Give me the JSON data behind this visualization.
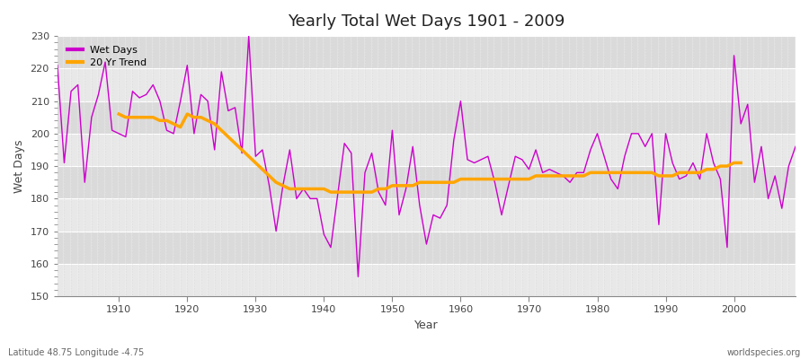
{
  "title": "Yearly Total Wet Days 1901 - 2009",
  "xlabel": "Year",
  "ylabel": "Wet Days",
  "ylim": [
    150,
    230
  ],
  "xlim": [
    1901,
    2009
  ],
  "yticks": [
    150,
    160,
    170,
    180,
    190,
    200,
    210,
    220,
    230
  ],
  "xticks": [
    1910,
    1920,
    1930,
    1940,
    1950,
    1960,
    1970,
    1980,
    1990,
    2000
  ],
  "wet_days_color": "#CC00CC",
  "trend_color": "#FFA500",
  "background_color": "#DCDCDC",
  "plot_bg_color": "#DCDCDC",
  "band_color_light": "#E8E8E8",
  "band_color_dark": "#D4D4D4",
  "subtitle_left": "Latitude 48.75 Longitude -4.75",
  "subtitle_right": "worldspecies.org",
  "legend_labels": [
    "Wet Days",
    "20 Yr Trend"
  ],
  "years": [
    1901,
    1902,
    1903,
    1904,
    1905,
    1906,
    1907,
    1908,
    1909,
    1910,
    1911,
    1912,
    1913,
    1914,
    1915,
    1916,
    1917,
    1918,
    1919,
    1920,
    1921,
    1922,
    1923,
    1924,
    1925,
    1926,
    1927,
    1928,
    1929,
    1930,
    1931,
    1932,
    1933,
    1934,
    1935,
    1936,
    1937,
    1938,
    1939,
    1940,
    1941,
    1942,
    1943,
    1944,
    1945,
    1946,
    1947,
    1948,
    1949,
    1950,
    1951,
    1952,
    1953,
    1954,
    1955,
    1956,
    1957,
    1958,
    1959,
    1960,
    1961,
    1962,
    1963,
    1964,
    1965,
    1966,
    1967,
    1968,
    1969,
    1970,
    1971,
    1972,
    1973,
    1974,
    1975,
    1976,
    1977,
    1978,
    1979,
    1980,
    1981,
    1982,
    1983,
    1984,
    1985,
    1986,
    1987,
    1988,
    1989,
    1990,
    1991,
    1992,
    1993,
    1994,
    1995,
    1996,
    1997,
    1998,
    1999,
    2000,
    2001,
    2002,
    2003,
    2004,
    2005,
    2006,
    2007,
    2008,
    2009
  ],
  "wet_days": [
    221,
    191,
    213,
    215,
    185,
    205,
    212,
    222,
    201,
    200,
    199,
    213,
    211,
    212,
    215,
    210,
    201,
    200,
    210,
    221,
    200,
    212,
    210,
    195,
    219,
    207,
    208,
    194,
    230,
    193,
    195,
    184,
    170,
    184,
    195,
    180,
    183,
    180,
    180,
    169,
    165,
    181,
    197,
    194,
    156,
    188,
    194,
    182,
    178,
    201,
    175,
    183,
    196,
    178,
    166,
    175,
    174,
    178,
    198,
    210,
    192,
    191,
    192,
    193,
    185,
    175,
    184,
    193,
    192,
    189,
    195,
    188,
    189,
    188,
    187,
    185,
    188,
    188,
    195,
    200,
    193,
    186,
    183,
    193,
    200,
    200,
    196,
    200,
    172,
    200,
    191,
    186,
    187,
    191,
    186,
    200,
    191,
    186,
    165,
    224,
    203,
    209,
    185,
    196,
    180,
    187,
    177,
    190,
    196
  ],
  "trend": [
    null,
    null,
    null,
    null,
    null,
    null,
    null,
    null,
    null,
    206,
    205,
    205,
    205,
    205,
    205,
    204,
    204,
    203,
    202,
    206,
    205,
    205,
    204,
    203,
    201,
    199,
    197,
    195,
    193,
    191,
    189,
    187,
    185,
    184,
    183,
    183,
    183,
    183,
    183,
    183,
    182,
    182,
    182,
    182,
    182,
    182,
    182,
    183,
    183,
    184,
    184,
    184,
    184,
    185,
    185,
    185,
    185,
    185,
    185,
    186,
    186,
    186,
    186,
    186,
    186,
    186,
    186,
    186,
    186,
    186,
    187,
    187,
    187,
    187,
    187,
    187,
    187,
    187,
    188,
    188,
    188,
    188,
    188,
    188,
    188,
    188,
    188,
    188,
    187,
    187,
    187,
    188,
    188,
    188,
    188,
    189,
    189,
    190,
    190,
    191,
    191,
    null,
    null,
    null,
    null,
    null,
    null,
    null,
    null
  ]
}
